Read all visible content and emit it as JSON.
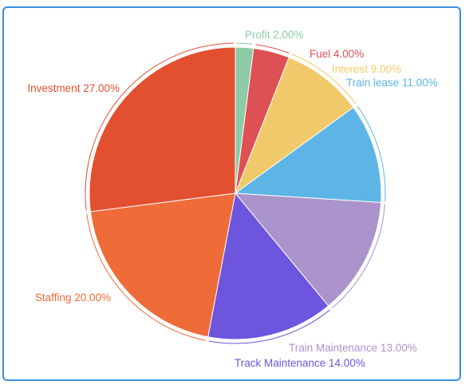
{
  "chart_data": {
    "type": "pie",
    "start_angle": "top",
    "direction": "clockwise",
    "slices": [
      {
        "label": "Profit 2.00%",
        "name": "Profit",
        "value": 2.0,
        "color": "#8fcaa6"
      },
      {
        "label": "Fuel 4.00%",
        "name": "Fuel",
        "value": 4.0,
        "color": "#dd5054"
      },
      {
        "label": "Interest 9.00%",
        "name": "Interest",
        "value": 9.0,
        "color": "#f0ca6a"
      },
      {
        "label": "Train lease 11.00%",
        "name": "Train lease",
        "value": 11.0,
        "color": "#5db5e6"
      },
      {
        "label": "Train Maintenance 13.00%",
        "name": "Train Maintenance",
        "value": 13.0,
        "color": "#ab93cb"
      },
      {
        "label": "Track Maintenance 14.00%",
        "name": "Track Maintenance",
        "value": 14.0,
        "color": "#6d55de"
      },
      {
        "label": "Staffing 20.00%",
        "name": "Staffing",
        "value": 20.0,
        "color": "#ef6b38"
      },
      {
        "label": "Investment 27.00%",
        "name": "Investment",
        "value": 27.0,
        "color": "#e35030"
      }
    ]
  }
}
